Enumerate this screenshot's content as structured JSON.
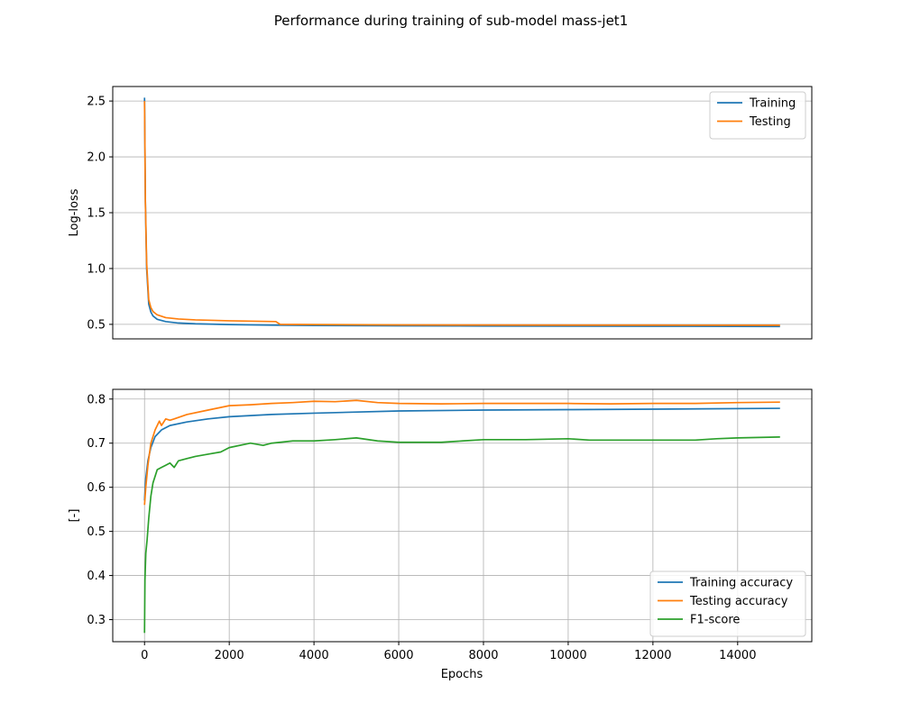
{
  "title": "Performance during training of sub-model mass-jet1",
  "colors": {
    "training": "#1f77b4",
    "testing": "#ff7f0e",
    "f1": "#2ca02c",
    "grid": "#b0b0b0",
    "axes": "#000000"
  },
  "chart_data": [
    {
      "type": "line",
      "ylabel": "Log-loss",
      "xlabel": "",
      "xlim": [
        -750,
        15750
      ],
      "ylim": [
        0.37,
        2.63
      ],
      "yticks": [
        0.5,
        1.0,
        1.5,
        2.0,
        2.5
      ],
      "ytick_labels": [
        "0.5",
        "1.0",
        "1.5",
        "2.0",
        "2.5"
      ],
      "show_xticks": false,
      "grid": "y",
      "legend_position": "top-right",
      "series": [
        {
          "name": "Training",
          "color_key": "training",
          "x": [
            0,
            20,
            50,
            100,
            150,
            200,
            300,
            500,
            800,
            1200,
            2000,
            3000,
            4000,
            6000,
            8000,
            10000,
            12000,
            15000
          ],
          "y": [
            2.53,
            1.6,
            1.0,
            0.68,
            0.61,
            0.575,
            0.545,
            0.525,
            0.512,
            0.505,
            0.498,
            0.493,
            0.49,
            0.487,
            0.485,
            0.484,
            0.483,
            0.481
          ]
        },
        {
          "name": "Testing",
          "color_key": "testing",
          "x": [
            0,
            20,
            50,
            100,
            150,
            200,
            300,
            500,
            800,
            1200,
            2000,
            3100,
            3200,
            4000,
            6000,
            8000,
            10000,
            12000,
            15000
          ],
          "y": [
            2.5,
            1.6,
            1.05,
            0.72,
            0.65,
            0.615,
            0.585,
            0.56,
            0.548,
            0.54,
            0.532,
            0.525,
            0.5,
            0.498,
            0.495,
            0.494,
            0.493,
            0.493,
            0.492
          ]
        }
      ]
    },
    {
      "type": "line",
      "ylabel": "[-]",
      "xlabel": "Epochs",
      "xlim": [
        -750,
        15750
      ],
      "ylim": [
        0.25,
        0.822
      ],
      "xticks": [
        0,
        2000,
        4000,
        6000,
        8000,
        10000,
        12000,
        14000
      ],
      "xtick_labels": [
        "0",
        "2000",
        "4000",
        "6000",
        "8000",
        "10000",
        "12000",
        "14000"
      ],
      "yticks": [
        0.3,
        0.4,
        0.5,
        0.6,
        0.7,
        0.8
      ],
      "ytick_labels": [
        "0.3",
        "0.4",
        "0.5",
        "0.6",
        "0.7",
        "0.8"
      ],
      "grid": "both",
      "legend_position": "bottom-right",
      "series": [
        {
          "name": "Training accuracy",
          "color_key": "training",
          "x": [
            0,
            30,
            80,
            150,
            250,
            400,
            600,
            1000,
            1500,
            2000,
            3000,
            4000,
            6000,
            8000,
            10000,
            12000,
            15000
          ],
          "y": [
            0.57,
            0.62,
            0.66,
            0.69,
            0.715,
            0.73,
            0.74,
            0.748,
            0.755,
            0.76,
            0.765,
            0.768,
            0.773,
            0.775,
            0.776,
            0.777,
            0.779
          ]
        },
        {
          "name": "Testing accuracy",
          "color_key": "testing",
          "x": [
            0,
            30,
            80,
            150,
            250,
            350,
            400,
            500,
            600,
            700,
            1000,
            1500,
            2000,
            2500,
            3000,
            3500,
            4000,
            4500,
            5000,
            5500,
            6000,
            7000,
            8000,
            9000,
            10000,
            11000,
            12000,
            13000,
            14000,
            15000
          ],
          "y": [
            0.56,
            0.6,
            0.65,
            0.7,
            0.73,
            0.75,
            0.74,
            0.755,
            0.752,
            0.755,
            0.765,
            0.775,
            0.785,
            0.787,
            0.79,
            0.792,
            0.795,
            0.794,
            0.797,
            0.792,
            0.79,
            0.789,
            0.79,
            0.79,
            0.79,
            0.789,
            0.79,
            0.79,
            0.792,
            0.793
          ]
        },
        {
          "name": "F1-score",
          "color_key": "f1",
          "x": [
            0,
            10,
            30,
            60,
            100,
            150,
            200,
            250,
            300,
            400,
            500,
            600,
            700,
            800,
            1000,
            1200,
            1500,
            1800,
            2000,
            2500,
            2800,
            3000,
            3500,
            4000,
            4500,
            5000,
            5500,
            6000,
            7000,
            7500,
            8000,
            9000,
            10000,
            10500,
            11000,
            12000,
            13000,
            13500,
            14000,
            15000
          ],
          "y": [
            0.27,
            0.39,
            0.45,
            0.48,
            0.53,
            0.58,
            0.61,
            0.625,
            0.64,
            0.645,
            0.65,
            0.655,
            0.645,
            0.66,
            0.665,
            0.67,
            0.675,
            0.68,
            0.69,
            0.7,
            0.695,
            0.7,
            0.705,
            0.705,
            0.708,
            0.712,
            0.705,
            0.702,
            0.702,
            0.705,
            0.708,
            0.708,
            0.71,
            0.707,
            0.707,
            0.707,
            0.707,
            0.71,
            0.712,
            0.714
          ]
        }
      ]
    }
  ]
}
